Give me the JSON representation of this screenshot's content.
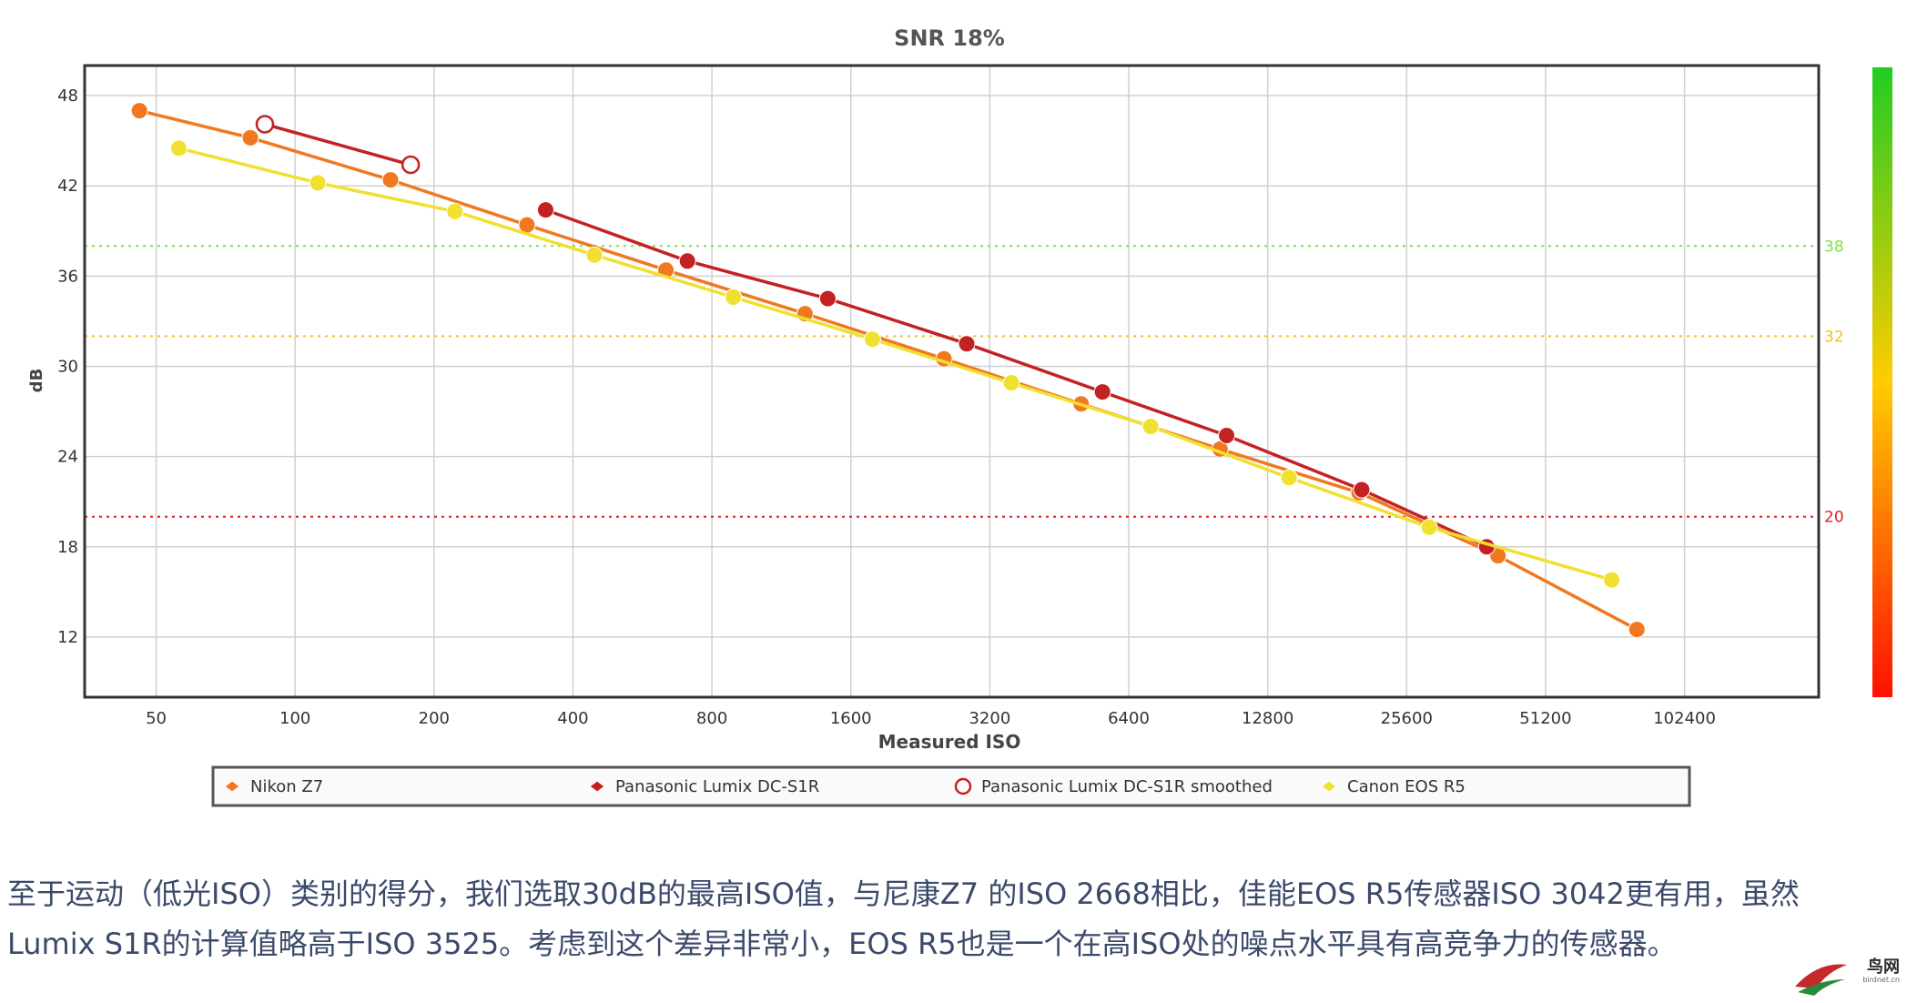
{
  "chart_data": {
    "type": "line",
    "title": "SNR 18%",
    "xlabel": "Measured ISO",
    "ylabel": "dB",
    "x_scale": "log2",
    "xlim": [
      35,
      200000
    ],
    "ylim": [
      8,
      50
    ],
    "x_ticks": [
      50,
      100,
      200,
      400,
      800,
      1600,
      3200,
      6400,
      12800,
      25600,
      51200,
      102400
    ],
    "x_tick_labels": [
      "50",
      "100",
      "200",
      "400",
      "800",
      "1600",
      "3200",
      "6400",
      "12800",
      "25600",
      "51200",
      "102400"
    ],
    "y_ticks": [
      12,
      18,
      24,
      30,
      36,
      42,
      48
    ],
    "y_tick_labels": [
      "12",
      "18",
      "24",
      "30",
      "36",
      "42",
      "48"
    ],
    "reference_lines": [
      {
        "value": 38,
        "label": "38",
        "color": "#7ee04a"
      },
      {
        "value": 32,
        "label": "32",
        "color": "#f0c020"
      },
      {
        "value": 20,
        "label": "20",
        "color": "#dd2222"
      }
    ],
    "series": [
      {
        "name": "Nikon Z7",
        "color": "#f07820",
        "marker": "filled",
        "x": [
          46,
          80,
          161,
          318,
          636,
          1273,
          2546,
          5047,
          10094,
          20188,
          40376,
          80752
        ],
        "y": [
          47.0,
          45.2,
          42.4,
          39.4,
          36.4,
          33.5,
          30.5,
          27.5,
          24.5,
          21.6,
          17.4,
          12.5
        ]
      },
      {
        "name": "Panasonic Lumix DC-S1R",
        "color": "#c42222",
        "marker": "filled",
        "x": [
          349,
          708,
          1426,
          2852,
          5614,
          10428,
          20460,
          38170
        ],
        "y": [
          40.4,
          37.0,
          34.5,
          31.5,
          28.3,
          25.4,
          21.8,
          18.0
        ]
      },
      {
        "name": "Panasonic Lumix DC-S1R smoothed",
        "color": "#c42222",
        "marker": "open",
        "x": [
          86,
          178
        ],
        "y": [
          46.1,
          43.4
        ]
      },
      {
        "name": "Canon EOS R5",
        "color": "#f0e030",
        "marker": "filled",
        "x": [
          56,
          112,
          222,
          445,
          890,
          1782,
          3563,
          7142,
          14245,
          28660,
          71200
        ],
        "y": [
          44.5,
          42.2,
          40.3,
          37.4,
          34.6,
          31.8,
          28.9,
          26.0,
          22.6,
          19.3,
          15.8
        ]
      }
    ]
  },
  "legend": [
    {
      "label": "Nikon Z7",
      "color": "#f07820",
      "marker": "filled"
    },
    {
      "label": "Panasonic Lumix DC-S1R",
      "color": "#c42222",
      "marker": "filled"
    },
    {
      "label": "Panasonic Lumix DC-S1R smoothed",
      "color": "#c42222",
      "marker": "open"
    },
    {
      "label": "Canon EOS R5",
      "color": "#f0e030",
      "marker": "filled"
    }
  ],
  "colorbar": {
    "top_color": "#22cc22",
    "mid_color": "#ffcc00",
    "bottom_color": "#ff1100"
  },
  "article": {
    "line1": "至于运动（低光ISO）类别的得分，我们选取30dB的最高ISO值，与尼康Z7 的ISO 2668相比，佳能EOS R5传感器ISO 3042更有用，虽然",
    "line2": "Lumix S1R的计算值略高于ISO 3525。考虑到这个差异非常小，EOS R5也是一个在高ISO处的噪点水平具有高竞争力的传感器。"
  },
  "watermark": {
    "text": "鸟网",
    "sub": "birdnet.cn"
  }
}
